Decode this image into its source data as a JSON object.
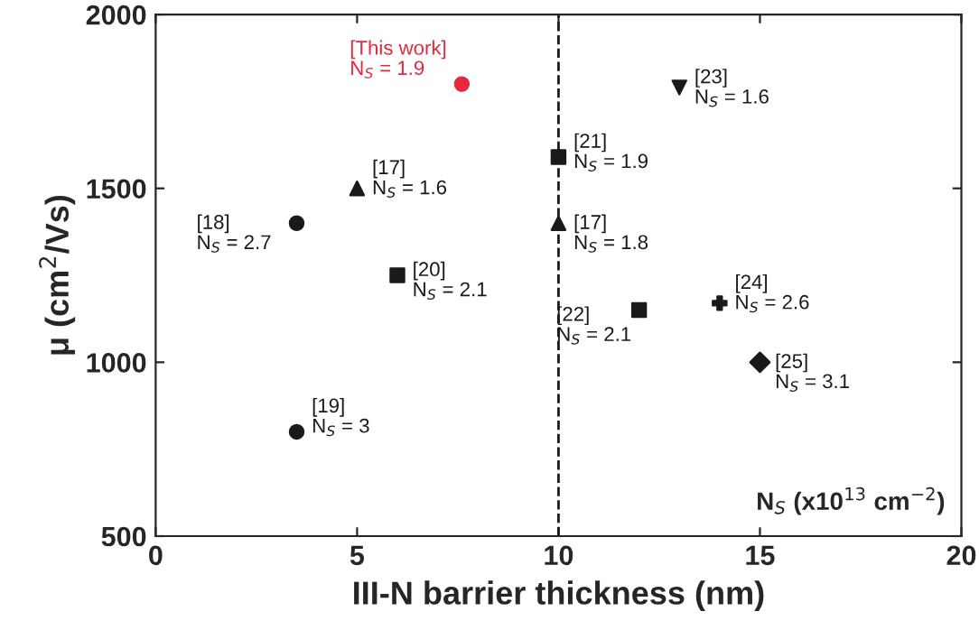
{
  "chart_data": {
    "type": "scatter",
    "xlabel": "III-N barrier thickness (nm)",
    "ylabel": "μ (cm$^{2}$/Vs)",
    "xlim": [
      0,
      20
    ],
    "xticks": [
      0,
      5,
      10,
      15,
      20
    ],
    "ylim": [
      500,
      2000
    ],
    "yticks": [
      500,
      1000,
      1500,
      2000
    ],
    "grid": false,
    "legend": false,
    "series": [
      {
        "x": [
          7.6
        ],
        "values": [
          1800
        ],
        "color": "#e8283c",
        "marker": "circle"
      },
      {
        "x": [
          5
        ],
        "values": [
          1500
        ],
        "color": "#1a1a1a",
        "marker": "triangle"
      },
      {
        "x": [
          3.5
        ],
        "values": [
          1400
        ],
        "color": "#1a1a1a",
        "marker": "circle"
      },
      {
        "x": [
          6
        ],
        "values": [
          1250
        ],
        "color": "#1a1a1a",
        "marker": "square"
      },
      {
        "x": [
          3.5
        ],
        "values": [
          800
        ],
        "color": "#1a1a1a",
        "marker": "circle"
      },
      {
        "x": [
          10
        ],
        "values": [
          1590
        ],
        "color": "#1a1a1a",
        "marker": "square"
      },
      {
        "x": [
          10
        ],
        "values": [
          1400
        ],
        "color": "#1a1a1a",
        "marker": "triangle"
      },
      {
        "x": [
          12
        ],
        "values": [
          1150
        ],
        "color": "#1a1a1a",
        "marker": "square"
      },
      {
        "x": [
          13
        ],
        "values": [
          1790
        ],
        "color": "#1a1a1a",
        "marker": "triangle_down"
      },
      {
        "x": [
          14
        ],
        "values": [
          1170
        ],
        "color": "#1a1a1a",
        "marker": "cross"
      },
      {
        "x": [
          15
        ],
        "values": [
          1000
        ],
        "color": "#1a1a1a",
        "marker": "diamond"
      }
    ],
    "ref_lines": [
      {
        "axis": "x",
        "value": 10,
        "line_style": "dashed",
        "color": "#1a1a1a"
      }
    ],
    "annotations": [
      {
        "text": "[This work]\nN$_{S}$ = 1.9",
        "x": 7.6,
        "y": 1800
      },
      {
        "text": "[17]\nN$_{S}$ = 1.6",
        "x": 5,
        "y": 1500
      },
      {
        "text": "[18]\nN$_{S}$ = 2.7",
        "x": 3.5,
        "y": 1400
      },
      {
        "text": "[20]\nN$_{S}$ = 2.1",
        "x": 6,
        "y": 1250
      },
      {
        "text": "[19]\nN$_{S}$ = 3",
        "x": 3.5,
        "y": 800
      },
      {
        "text": "[21]\nN$_{S}$ = 1.9",
        "x": 10,
        "y": 1590
      },
      {
        "text": "[17]\nN$_{S}$ = 1.8",
        "x": 10,
        "y": 1400
      },
      {
        "text": "[22]\nN$_{S}$ = 2.1",
        "x": 12,
        "y": 1150
      },
      {
        "text": "[23]\nN$_{S}$ = 1.6",
        "x": 13,
        "y": 1790
      },
      {
        "text": "[24]\nN$_{S}$ = 2.6",
        "x": 14,
        "y": 1170
      },
      {
        "text": "[25]\nN$_{S}$ = 3.1",
        "x": 15,
        "y": 1000
      },
      "N$_{S}$ (x10$^{13}$ cm$^{−2}$)"
    ]
  }
}
